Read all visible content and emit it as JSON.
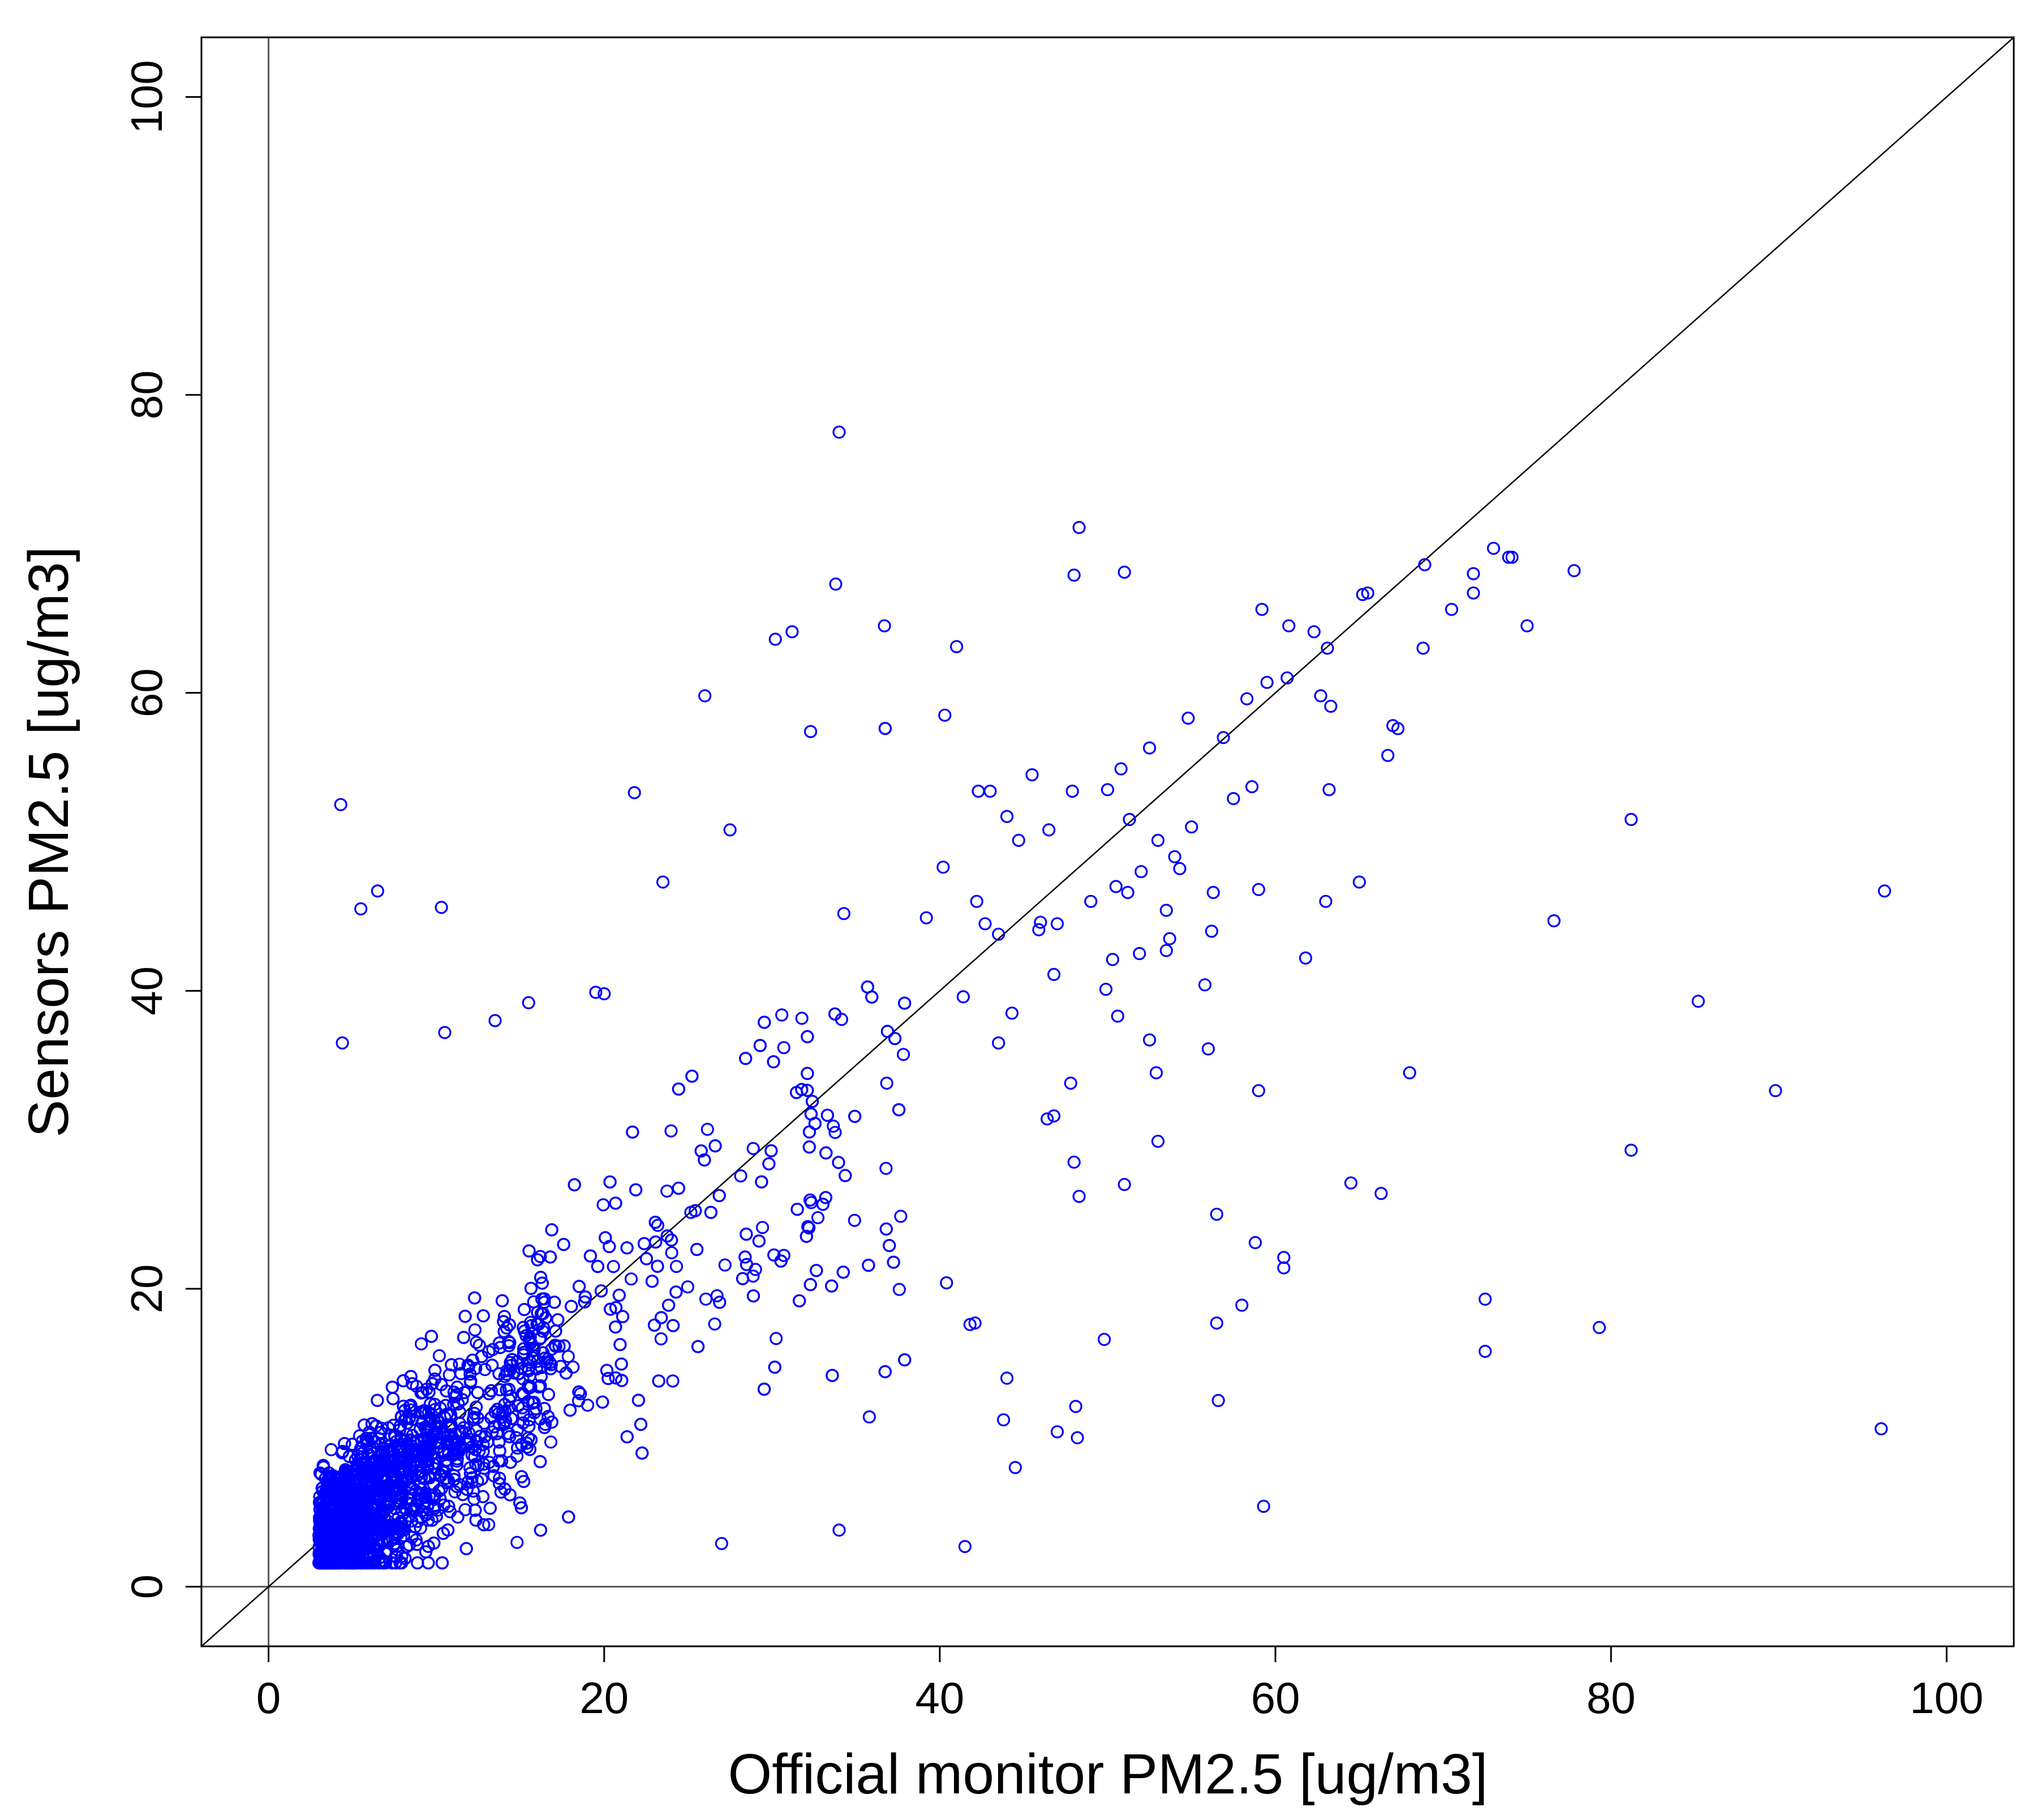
{
  "chart_data": {
    "type": "scatter",
    "title": "",
    "xlabel": "Official monitor PM2.5 [ug/m3]",
    "ylabel": "Sensors PM2.5 [ug/m3]",
    "xlim": [
      -4,
      104
    ],
    "ylim": [
      -4,
      104
    ],
    "x_ticks": [
      "0",
      "20",
      "40",
      "60",
      "80",
      "100"
    ],
    "y_ticks": [
      "0",
      "20",
      "40",
      "60",
      "80",
      "100"
    ],
    "reference_lines": [
      "y = x",
      "x = 0",
      "y = 0"
    ],
    "grid": false,
    "legend": "none",
    "marker": "open-circle",
    "point_color": "#0000FF",
    "series": [
      {
        "points": [
          [
            4.3,
            52.5
          ],
          [
            5.5,
            45.5
          ],
          [
            6.5,
            46.7
          ],
          [
            10.3,
            45.6
          ],
          [
            4.4,
            36.5
          ],
          [
            10.5,
            37.2
          ],
          [
            13.5,
            38.0
          ],
          [
            15.5,
            39.2
          ],
          [
            19.5,
            39.9
          ],
          [
            20.0,
            39.8
          ],
          [
            21.8,
            53.3
          ],
          [
            23.5,
            47.3
          ],
          [
            26.0,
            59.8
          ],
          [
            27.5,
            50.8
          ],
          [
            30.2,
            63.6
          ],
          [
            31.2,
            64.1
          ],
          [
            32.3,
            57.4
          ],
          [
            33.8,
            67.3
          ],
          [
            34.0,
            77.5
          ],
          [
            36.7,
            64.5
          ],
          [
            39.2,
            44.9
          ],
          [
            40.2,
            48.3
          ],
          [
            40.3,
            58.5
          ],
          [
            41.0,
            63.1
          ],
          [
            42.3,
            53.4
          ],
          [
            43.0,
            53.4
          ],
          [
            45.5,
            54.5
          ],
          [
            48.0,
            67.9
          ],
          [
            48.3,
            71.1
          ],
          [
            51.0,
            68.1
          ],
          [
            52.5,
            56.3
          ],
          [
            54.8,
            58.3
          ],
          [
            56.9,
            57.0
          ],
          [
            58.3,
            59.6
          ],
          [
            59.2,
            65.6
          ],
          [
            59.5,
            60.7
          ],
          [
            60.7,
            61.0
          ],
          [
            60.8,
            64.5
          ],
          [
            62.3,
            64.1
          ],
          [
            63.1,
            63.0
          ],
          [
            65.2,
            66.6
          ],
          [
            65.5,
            66.7
          ],
          [
            68.9,
            68.6
          ],
          [
            70.5,
            65.6
          ],
          [
            71.8,
            68.0
          ],
          [
            73.0,
            69.7
          ],
          [
            73.9,
            69.1
          ],
          [
            74.1,
            69.1
          ],
          [
            77.8,
            68.2
          ],
          [
            71.8,
            66.7
          ],
          [
            75.0,
            64.5
          ],
          [
            68.8,
            63.0
          ],
          [
            67.3,
            57.6
          ],
          [
            67.0,
            57.8
          ],
          [
            66.7,
            55.8
          ],
          [
            63.2,
            53.5
          ],
          [
            63.3,
            59.1
          ],
          [
            62.7,
            59.8
          ],
          [
            63.0,
            46.0
          ],
          [
            65.0,
            47.3
          ],
          [
            61.8,
            42.2
          ],
          [
            59.0,
            46.8
          ],
          [
            56.3,
            46.6
          ],
          [
            56.2,
            44.0
          ],
          [
            55.8,
            40.4
          ],
          [
            56.0,
            36.1
          ],
          [
            59.0,
            33.3
          ],
          [
            64.5,
            27.1
          ],
          [
            66.3,
            26.4
          ],
          [
            68.0,
            34.5
          ],
          [
            76.6,
            44.7
          ],
          [
            81.2,
            51.5
          ],
          [
            96.3,
            46.7
          ],
          [
            85.2,
            39.3
          ],
          [
            89.8,
            33.3
          ],
          [
            81.2,
            29.3
          ],
          [
            79.3,
            17.4
          ],
          [
            72.5,
            19.3
          ],
          [
            72.5,
            15.8
          ],
          [
            96.1,
            10.6
          ],
          [
            60.5,
            22.1
          ],
          [
            60.5,
            21.4
          ],
          [
            58.8,
            23.1
          ],
          [
            56.5,
            25.0
          ],
          [
            58.0,
            18.9
          ],
          [
            56.5,
            17.7
          ],
          [
            56.6,
            12.5
          ],
          [
            59.3,
            5.4
          ],
          [
            53.0,
            29.9
          ],
          [
            52.9,
            34.5
          ],
          [
            52.5,
            36.7
          ],
          [
            51.0,
            27.0
          ],
          [
            49.8,
            16.6
          ],
          [
            48.3,
            26.2
          ],
          [
            48.0,
            28.5
          ],
          [
            47.8,
            33.8
          ],
          [
            48.1,
            12.1
          ],
          [
            48.2,
            10.0
          ],
          [
            47.0,
            10.4
          ],
          [
            44.0,
            14.0
          ],
          [
            43.8,
            11.2
          ],
          [
            44.5,
            8.0
          ],
          [
            41.5,
            2.7
          ],
          [
            34.0,
            3.8
          ],
          [
            27.0,
            2.9
          ],
          [
            35.8,
            11.4
          ],
          [
            41.8,
            17.6
          ],
          [
            42.1,
            17.7
          ],
          [
            40.4,
            20.4
          ],
          [
            55.0,
            51.0
          ],
          [
            53.7,
            43.5
          ],
          [
            57.5,
            52.9
          ],
          [
            58.6,
            53.7
          ],
          [
            52.0,
            48.0
          ],
          [
            50.5,
            47.0
          ],
          [
            49.0,
            46.0
          ],
          [
            51.3,
            51.5
          ],
          [
            50.0,
            53.5
          ],
          [
            50.8,
            54.9
          ],
          [
            47.9,
            53.4
          ],
          [
            47.0,
            44.5
          ],
          [
            46.5,
            50.8
          ],
          [
            44.0,
            51.7
          ],
          [
            44.7,
            50.1
          ],
          [
            45.9,
            44.1
          ],
          [
            46.0,
            44.6
          ],
          [
            43.5,
            43.8
          ],
          [
            42.2,
            46.0
          ],
          [
            41.4,
            39.6
          ],
          [
            43.5,
            36.5
          ],
          [
            44.3,
            38.5
          ],
          [
            42.7,
            44.5
          ],
          [
            46.8,
            41.1
          ],
          [
            46.4,
            31.4
          ],
          [
            46.8,
            31.6
          ],
          [
            49.9,
            40.1
          ],
          [
            50.6,
            38.3
          ],
          [
            50.3,
            42.1
          ],
          [
            51.2,
            46.6
          ],
          [
            51.9,
            42.5
          ],
          [
            53.5,
            42.7
          ],
          [
            54.3,
            48.2
          ],
          [
            53.5,
            45.4
          ],
          [
            54.0,
            49.0
          ],
          [
            53.0,
            50.1
          ]
        ]
      }
    ]
  }
}
